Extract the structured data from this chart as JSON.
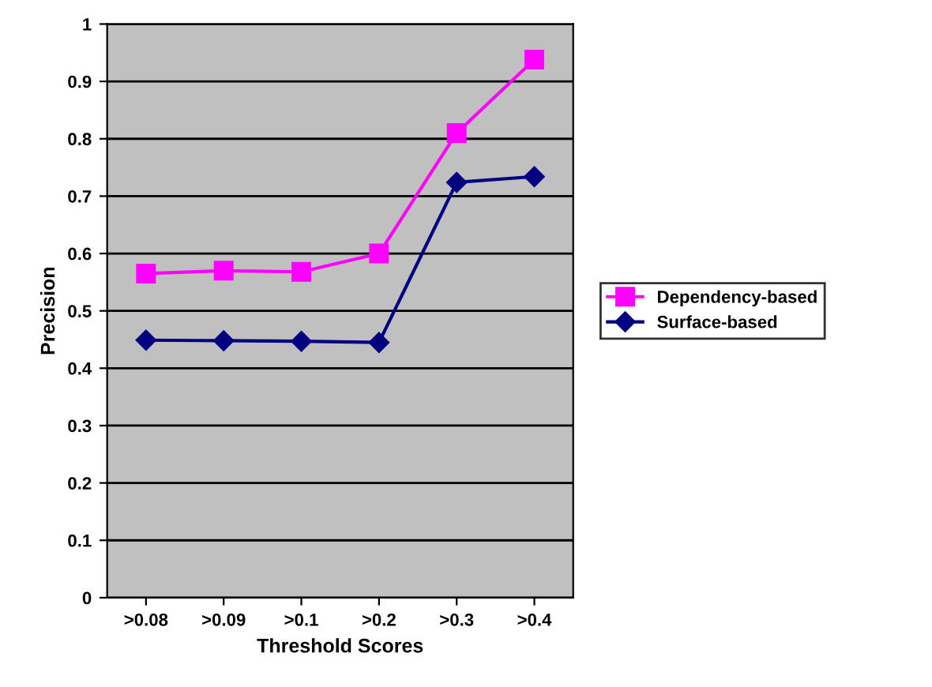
{
  "chart_data": {
    "type": "line",
    "xlabel": "Threshold Scores",
    "ylabel": "Precision",
    "categories": [
      ">0.08",
      ">0.09",
      ">0.1",
      ">0.2",
      ">0.3",
      ">0.4"
    ],
    "series": [
      {
        "name": "Dependency-based",
        "color": "#ff00ff",
        "marker": "square",
        "values": [
          0.565,
          0.57,
          0.568,
          0.6,
          0.81,
          0.938
        ]
      },
      {
        "name": "Surface-based",
        "color": "#000080",
        "marker": "diamond",
        "values": [
          0.449,
          0.448,
          0.447,
          0.445,
          0.724,
          0.734
        ]
      }
    ],
    "ylim": [
      0,
      1
    ],
    "yticks": [
      0,
      0.1,
      0.2,
      0.3,
      0.4,
      0.5,
      0.6,
      0.7,
      0.8,
      0.9,
      1
    ],
    "grid": "y",
    "legend": "right"
  }
}
